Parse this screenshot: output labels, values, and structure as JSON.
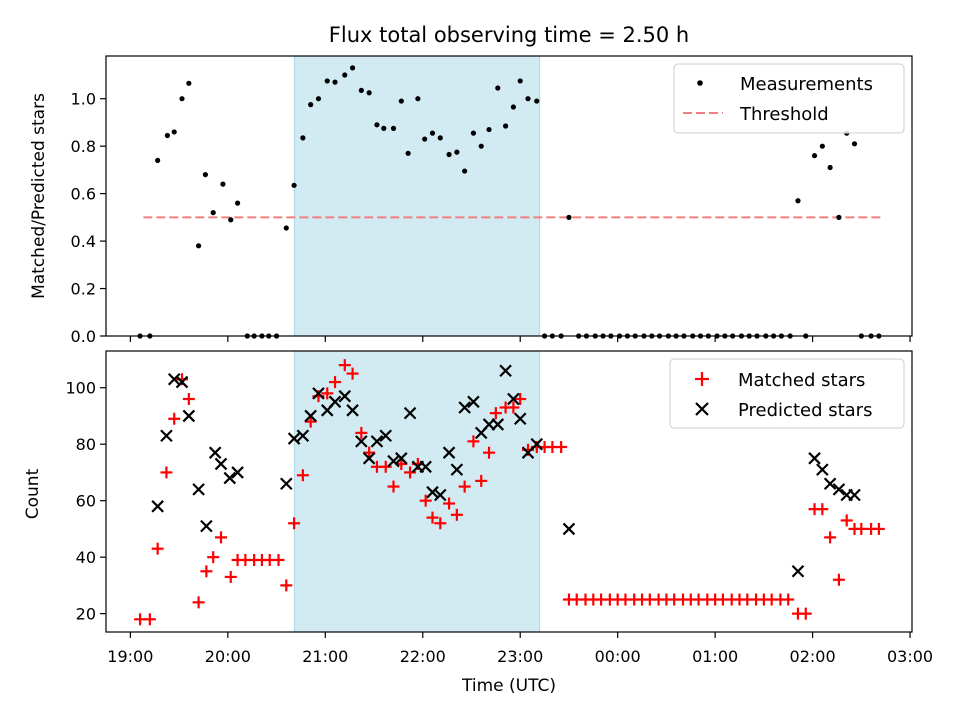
{
  "chart_data": {
    "title": "Flux total observing time = 2.50 h",
    "type": "scatter",
    "xlabel": "Time (UTC)",
    "x_ticks": [
      {
        "t": 0.0,
        "label": "19:00"
      },
      {
        "t": 1.0,
        "label": "20:00"
      },
      {
        "t": 2.0,
        "label": "21:00"
      },
      {
        "t": 3.0,
        "label": "22:00"
      },
      {
        "t": 4.0,
        "label": "23:00"
      },
      {
        "t": 5.0,
        "label": "00:00"
      },
      {
        "t": 6.0,
        "label": "01:00"
      },
      {
        "t": 7.0,
        "label": "02:00"
      },
      {
        "t": 8.0,
        "label": "03:00"
      }
    ],
    "xlim": [
      -0.25,
      8.02
    ],
    "shaded_span": {
      "start": 1.683,
      "end": 4.2,
      "color": "#add8e6"
    },
    "top": {
      "ylabel": "Matched/Predicted stars",
      "ylim": [
        0,
        1.18
      ],
      "y_ticks": [
        "0.0",
        "0.2",
        "0.4",
        "0.6",
        "0.8",
        "1.0"
      ],
      "legend": {
        "measurements": "Measurements",
        "threshold": "Threshold"
      },
      "threshold": {
        "value": 0.5,
        "x_start": 0.133,
        "x_end": 7.7,
        "color": "#f08080"
      },
      "measurements": [
        [
          0.1,
          0
        ],
        [
          0.2,
          0
        ],
        [
          0.28,
          0.74
        ],
        [
          0.38,
          0.845
        ],
        [
          0.45,
          0.86
        ],
        [
          0.53,
          1.0
        ],
        [
          0.6,
          1.065
        ],
        [
          0.7,
          0.38
        ],
        [
          0.77,
          0.68
        ],
        [
          0.85,
          0.52
        ],
        [
          0.95,
          0.64
        ],
        [
          1.03,
          0.49
        ],
        [
          1.1,
          0.56
        ],
        [
          1.2,
          0
        ],
        [
          1.27,
          0
        ],
        [
          1.35,
          0
        ],
        [
          1.42,
          0
        ],
        [
          1.5,
          0
        ],
        [
          1.6,
          0.455
        ],
        [
          1.68,
          0.635
        ],
        [
          1.77,
          0.835
        ],
        [
          1.85,
          0.975
        ],
        [
          1.93,
          1.0
        ],
        [
          2.02,
          1.075
        ],
        [
          2.1,
          1.07
        ],
        [
          2.2,
          1.1
        ],
        [
          2.28,
          1.13
        ],
        [
          2.37,
          1.035
        ],
        [
          2.45,
          1.025
        ],
        [
          2.53,
          0.89
        ],
        [
          2.6,
          0.875
        ],
        [
          2.7,
          0.875
        ],
        [
          2.78,
          0.99
        ],
        [
          2.85,
          0.77
        ],
        [
          2.95,
          1.0
        ],
        [
          3.02,
          0.83
        ],
        [
          3.1,
          0.855
        ],
        [
          3.18,
          0.835
        ],
        [
          3.27,
          0.765
        ],
        [
          3.35,
          0.775
        ],
        [
          3.43,
          0.695
        ],
        [
          3.52,
          0.855
        ],
        [
          3.6,
          0.8
        ],
        [
          3.68,
          0.87
        ],
        [
          3.77,
          1.045
        ],
        [
          3.85,
          0.885
        ],
        [
          3.93,
          0.965
        ],
        [
          4.0,
          1.075
        ],
        [
          4.08,
          1.0
        ],
        [
          4.17,
          0.99
        ],
        [
          4.25,
          0
        ],
        [
          4.33,
          0
        ],
        [
          4.42,
          0
        ],
        [
          4.5,
          0.5
        ],
        [
          4.6,
          0
        ],
        [
          4.68,
          0
        ],
        [
          4.77,
          0
        ],
        [
          4.85,
          0
        ],
        [
          4.93,
          0
        ],
        [
          5.02,
          0
        ],
        [
          5.1,
          0
        ],
        [
          5.18,
          0
        ],
        [
          5.27,
          0
        ],
        [
          5.35,
          0
        ],
        [
          5.43,
          0
        ],
        [
          5.52,
          0
        ],
        [
          5.6,
          0
        ],
        [
          5.68,
          0
        ],
        [
          5.77,
          0
        ],
        [
          5.85,
          0
        ],
        [
          5.93,
          0
        ],
        [
          6.02,
          0
        ],
        [
          6.1,
          0
        ],
        [
          6.18,
          0
        ],
        [
          6.27,
          0
        ],
        [
          6.35,
          0
        ],
        [
          6.43,
          0
        ],
        [
          6.52,
          0
        ],
        [
          6.6,
          0
        ],
        [
          6.68,
          0
        ],
        [
          6.77,
          0
        ],
        [
          6.85,
          0.57
        ],
        [
          6.93,
          0
        ],
        [
          7.02,
          0.76
        ],
        [
          7.1,
          0.8
        ],
        [
          7.18,
          0.71
        ],
        [
          7.27,
          0.5
        ],
        [
          7.35,
          0.855
        ],
        [
          7.43,
          0.81
        ],
        [
          7.5,
          0
        ],
        [
          7.6,
          0
        ],
        [
          7.68,
          0
        ]
      ]
    },
    "bottom": {
      "ylabel": "Count",
      "ylim": [
        13.5,
        113
      ],
      "y_ticks": [
        20,
        40,
        60,
        80,
        100
      ],
      "series": [
        {
          "name": "Matched stars",
          "marker": "plus",
          "color": "#ff0000",
          "points": [
            [
              0.1,
              18
            ],
            [
              0.2,
              18
            ],
            [
              0.28,
              43
            ],
            [
              0.37,
              70
            ],
            [
              0.45,
              89
            ],
            [
              0.53,
              103
            ],
            [
              0.6,
              96
            ],
            [
              0.7,
              24
            ],
            [
              0.78,
              35
            ],
            [
              0.85,
              40
            ],
            [
              0.93,
              47
            ],
            [
              1.03,
              33
            ],
            [
              1.1,
              39
            ],
            [
              1.18,
              39
            ],
            [
              1.27,
              39
            ],
            [
              1.35,
              39
            ],
            [
              1.43,
              39
            ],
            [
              1.52,
              39
            ],
            [
              1.6,
              30
            ],
            [
              1.68,
              52
            ],
            [
              1.77,
              69
            ],
            [
              1.85,
              88
            ],
            [
              1.93,
              97
            ],
            [
              2.02,
              98
            ],
            [
              2.1,
              102
            ],
            [
              2.2,
              108
            ],
            [
              2.28,
              105
            ],
            [
              2.37,
              84
            ],
            [
              2.45,
              77
            ],
            [
              2.53,
              72
            ],
            [
              2.62,
              72
            ],
            [
              2.7,
              65
            ],
            [
              2.78,
              73
            ],
            [
              2.87,
              70
            ],
            [
              2.95,
              73
            ],
            [
              3.03,
              60
            ],
            [
              3.1,
              54
            ],
            [
              3.18,
              52
            ],
            [
              3.27,
              59
            ],
            [
              3.35,
              55
            ],
            [
              3.43,
              65
            ],
            [
              3.52,
              81
            ],
            [
              3.6,
              67
            ],
            [
              3.68,
              77
            ],
            [
              3.75,
              91
            ],
            [
              3.85,
              93
            ],
            [
              3.93,
              93
            ],
            [
              4.0,
              96
            ],
            [
              4.08,
              78
            ],
            [
              4.17,
              79
            ],
            [
              4.25,
              79
            ],
            [
              4.33,
              79
            ],
            [
              4.42,
              79
            ],
            [
              4.5,
              25
            ],
            [
              4.58,
              25
            ],
            [
              4.67,
              25
            ],
            [
              4.75,
              25
            ],
            [
              4.83,
              25
            ],
            [
              4.92,
              25
            ],
            [
              5.0,
              25
            ],
            [
              5.08,
              25
            ],
            [
              5.17,
              25
            ],
            [
              5.25,
              25
            ],
            [
              5.33,
              25
            ],
            [
              5.42,
              25
            ],
            [
              5.5,
              25
            ],
            [
              5.58,
              25
            ],
            [
              5.67,
              25
            ],
            [
              5.75,
              25
            ],
            [
              5.83,
              25
            ],
            [
              5.92,
              25
            ],
            [
              6.0,
              25
            ],
            [
              6.08,
              25
            ],
            [
              6.17,
              25
            ],
            [
              6.25,
              25
            ],
            [
              6.33,
              25
            ],
            [
              6.42,
              25
            ],
            [
              6.5,
              25
            ],
            [
              6.58,
              25
            ],
            [
              6.67,
              25
            ],
            [
              6.75,
              25
            ],
            [
              6.85,
              20
            ],
            [
              6.93,
              20
            ],
            [
              7.02,
              57
            ],
            [
              7.1,
              57
            ],
            [
              7.18,
              47
            ],
            [
              7.27,
              32
            ],
            [
              7.35,
              53
            ],
            [
              7.43,
              50
            ],
            [
              7.5,
              50
            ],
            [
              7.6,
              50
            ],
            [
              7.68,
              50
            ]
          ]
        },
        {
          "name": "Predicted stars",
          "marker": "x",
          "color": "#000000",
          "points": [
            [
              0.28,
              58
            ],
            [
              0.37,
              83
            ],
            [
              0.45,
              103
            ],
            [
              0.53,
              102
            ],
            [
              0.6,
              90
            ],
            [
              0.7,
              64
            ],
            [
              0.78,
              51
            ],
            [
              0.87,
              77
            ],
            [
              0.93,
              73
            ],
            [
              1.02,
              68
            ],
            [
              1.1,
              70
            ],
            [
              1.6,
              66
            ],
            [
              1.68,
              82
            ],
            [
              1.77,
              83
            ],
            [
              1.85,
              90
            ],
            [
              1.93,
              98
            ],
            [
              2.02,
              92
            ],
            [
              2.1,
              95
            ],
            [
              2.2,
              97
            ],
            [
              2.28,
              92
            ],
            [
              2.37,
              81
            ],
            [
              2.45,
              75
            ],
            [
              2.53,
              81
            ],
            [
              2.62,
              83
            ],
            [
              2.7,
              74
            ],
            [
              2.78,
              75
            ],
            [
              2.87,
              91
            ],
            [
              2.95,
              72
            ],
            [
              3.03,
              72
            ],
            [
              3.1,
              63
            ],
            [
              3.18,
              62
            ],
            [
              3.27,
              77
            ],
            [
              3.35,
              71
            ],
            [
              3.43,
              93
            ],
            [
              3.52,
              95
            ],
            [
              3.6,
              84
            ],
            [
              3.68,
              87
            ],
            [
              3.77,
              87
            ],
            [
              3.85,
              106
            ],
            [
              3.93,
              96
            ],
            [
              4.0,
              89
            ],
            [
              4.08,
              77
            ],
            [
              4.17,
              80
            ],
            [
              4.5,
              50
            ],
            [
              6.85,
              35
            ],
            [
              7.02,
              75
            ],
            [
              7.1,
              71
            ],
            [
              7.18,
              66
            ],
            [
              7.27,
              64
            ],
            [
              7.35,
              62
            ],
            [
              7.43,
              62
            ]
          ]
        }
      ]
    }
  }
}
